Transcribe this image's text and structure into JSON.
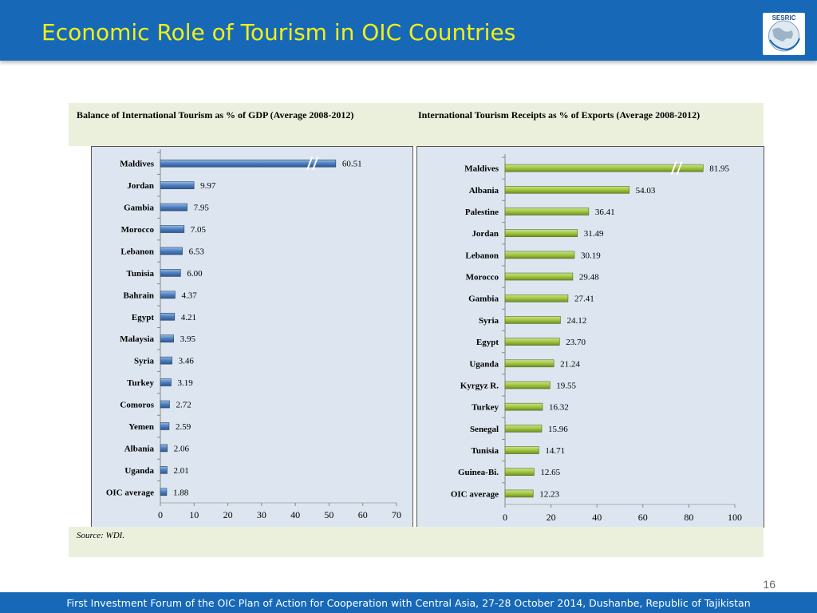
{
  "slide": {
    "title": "Economic Role of Tourism in OIC Countries",
    "logo_text": "SESRIC",
    "source": "Source: WDI.",
    "page_number": "16",
    "footer": "First Investment Forum of the OIC Plan of Action for Cooperation with Central Asia, 27-28 October 2014, Dushanbe, Republic of Tajikistan"
  },
  "chart_data": [
    {
      "type": "bar",
      "orientation": "horizontal",
      "title": "Balance of International Tourism as % of GDP (Average 2008-2012)",
      "categories": [
        "Maldives",
        "Jordan",
        "Gambia",
        "Morocco",
        "Lebanon",
        "Tunisia",
        "Bahrain",
        "Egypt",
        "Malaysia",
        "Syria",
        "Turkey",
        "Comoros",
        "Yemen",
        "Albania",
        "Uganda",
        "OIC average"
      ],
      "values": [
        60.51,
        9.97,
        7.95,
        7.05,
        6.53,
        6.0,
        4.37,
        4.21,
        3.95,
        3.46,
        3.19,
        2.72,
        2.59,
        2.06,
        2.01,
        1.88
      ],
      "labels": [
        "60.51",
        "9.97",
        "7.95",
        "7.05",
        "6.53",
        "6.00",
        "4.37",
        "4.21",
        "3.95",
        "3.46",
        "3.19",
        "2.72",
        "2.59",
        "2.06",
        "2.01",
        "1.88"
      ],
      "xlim": [
        0,
        70
      ],
      "xticks": [
        "0",
        "10",
        "20",
        "30",
        "40",
        "50",
        "60",
        "70"
      ],
      "axis_break": true,
      "bar_color": "#4a7fc4"
    },
    {
      "type": "bar",
      "orientation": "horizontal",
      "title": "International Tourism Receipts as % of Exports (Average 2008-2012)",
      "categories": [
        "Maldives",
        "Albania",
        "Palestine",
        "Jordan",
        "Lebanon",
        "Morocco",
        "Gambia",
        "Syria",
        "Egypt",
        "Uganda",
        "Kyrgyz R.",
        "Turkey",
        "Senegal",
        "Tunisia",
        "Guinea-Bi.",
        "OIC average"
      ],
      "values": [
        81.95,
        54.03,
        36.41,
        31.49,
        30.19,
        29.48,
        27.41,
        24.12,
        23.7,
        21.24,
        19.55,
        16.32,
        15.96,
        14.71,
        12.65,
        12.23
      ],
      "labels": [
        "81.95",
        "54.03",
        "36.41",
        "31.49",
        "30.19",
        "29.48",
        "27.41",
        "24.12",
        "23.70",
        "21.24",
        "19.55",
        "16.32",
        "15.96",
        "14.71",
        "12.65",
        "12.23"
      ],
      "xlim": [
        0,
        100
      ],
      "xticks": [
        "0",
        "20",
        "40",
        "60",
        "80",
        "100"
      ],
      "axis_break": true,
      "bar_color": "#a0c83c"
    }
  ]
}
